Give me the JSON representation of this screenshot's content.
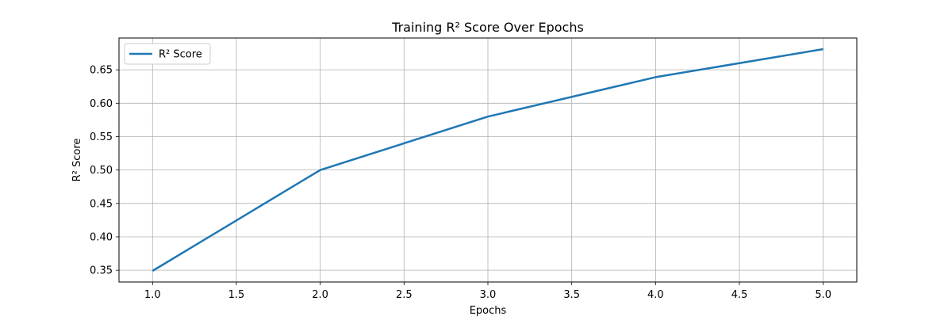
{
  "chart_data": {
    "type": "line",
    "title": "Training R² Score Over Epochs",
    "xlabel": "Epochs",
    "ylabel": "R² Score",
    "x": [
      1,
      2,
      3,
      4,
      5
    ],
    "series": [
      {
        "name": "R² Score",
        "color": "#1f77b4",
        "values": [
          0.349,
          0.5,
          0.58,
          0.639,
          0.681
        ]
      }
    ],
    "xlim": [
      0.8,
      5.2
    ],
    "ylim": [
      0.3324,
      0.6976
    ],
    "xticks": [
      "1.0",
      "1.5",
      "2.0",
      "2.5",
      "3.0",
      "3.5",
      "4.0",
      "4.5",
      "5.0"
    ],
    "yticks": [
      "0.35",
      "0.40",
      "0.45",
      "0.50",
      "0.55",
      "0.60",
      "0.65"
    ],
    "grid": true,
    "legend_position": "upper left"
  }
}
